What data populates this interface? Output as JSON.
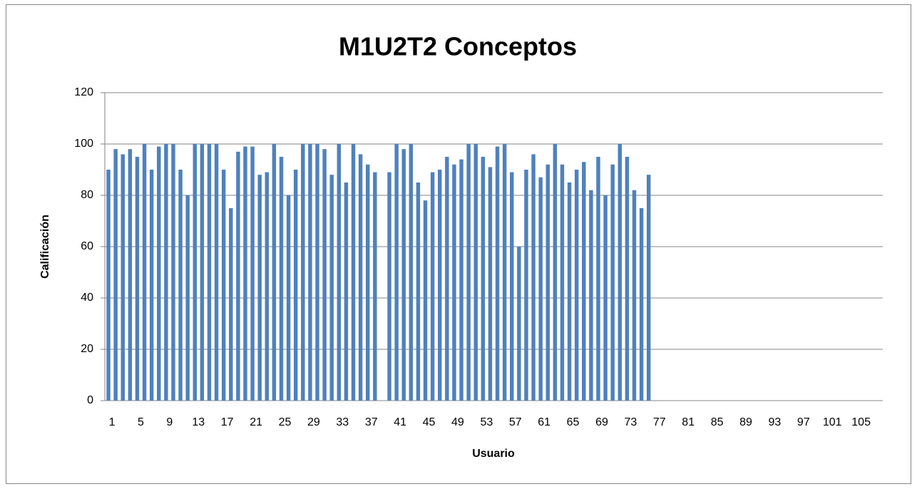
{
  "chart_data": {
    "type": "bar",
    "title": "M1U2T2 Conceptos",
    "x_label": "Usuario",
    "y_label": "Calificación",
    "categories": [
      1,
      null,
      null,
      null,
      5,
      null,
      null,
      null,
      9,
      null,
      null,
      null,
      13,
      null,
      null,
      null,
      17,
      null,
      null,
      null,
      21,
      null,
      null,
      null,
      25,
      null,
      null,
      null,
      29,
      null,
      null,
      null,
      33,
      null,
      null,
      null,
      37,
      null,
      null,
      null,
      41,
      null,
      null,
      null,
      45,
      null,
      null,
      null,
      49,
      null,
      null,
      null,
      53,
      null,
      null,
      null,
      57,
      null,
      null,
      null,
      61,
      null,
      null,
      null,
      65,
      null,
      null,
      null,
      69,
      null,
      null,
      null,
      73,
      null,
      null,
      null,
      77,
      null,
      null,
      null,
      81,
      null,
      null,
      null,
      85,
      null,
      null,
      null,
      89,
      null,
      null,
      null,
      93,
      null,
      null,
      null,
      97,
      null,
      null,
      null,
      101,
      null,
      null,
      null,
      105,
      null,
      null,
      null
    ],
    "values": [
      90,
      98,
      96,
      98,
      95,
      100,
      90,
      99,
      100,
      100,
      90,
      80,
      100,
      100,
      100,
      100,
      90,
      75,
      97,
      99,
      99,
      88,
      89,
      100,
      95,
      80,
      90,
      100,
      100,
      100,
      98,
      88,
      100,
      85,
      100,
      96,
      92,
      89,
      null,
      89,
      100,
      98,
      100,
      85,
      78,
      89,
      90,
      95,
      92,
      94,
      100,
      100,
      95,
      91,
      99,
      100,
      89,
      60,
      90,
      96,
      87,
      92,
      100,
      92,
      85,
      90,
      93,
      82,
      95,
      80,
      92,
      100,
      95,
      82,
      75,
      88,
      null,
      null,
      null,
      null,
      null,
      null,
      null,
      null,
      null,
      null,
      null,
      null,
      null,
      null,
      null,
      null,
      null,
      null,
      null,
      null,
      null,
      null,
      null,
      null,
      null,
      null,
      null,
      null,
      null,
      null,
      null,
      null
    ],
    "color": "#4f81bd",
    "ylim": [
      0,
      120
    ],
    "yticks": [
      0,
      20,
      40,
      60,
      80,
      100,
      120
    ],
    "grid": true
  }
}
